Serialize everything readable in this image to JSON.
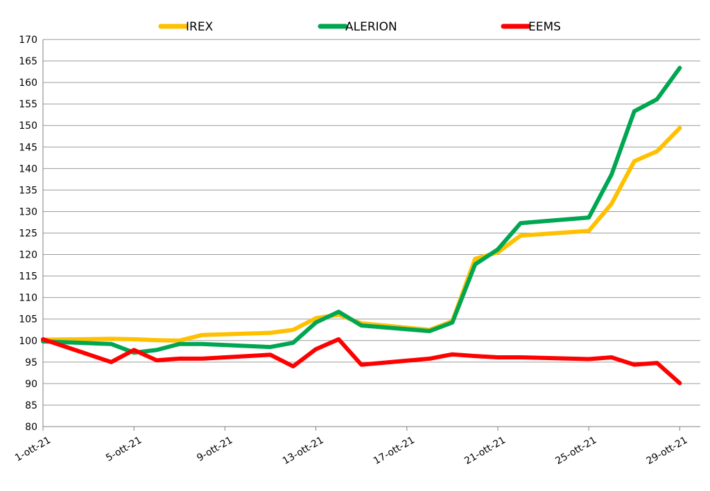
{
  "chart_data": {
    "type": "line",
    "title": "",
    "xlabel": "",
    "ylabel": "",
    "ylim": [
      80,
      170
    ],
    "y_step": 5,
    "y_ticks": [
      "170",
      "165",
      "160",
      "155",
      "150",
      "145",
      "140",
      "135",
      "130",
      "125",
      "120",
      "115",
      "110",
      "105",
      "100",
      "95",
      "90",
      "85",
      "80"
    ],
    "x_range": [
      "2021-10-01",
      "2021-10-30"
    ],
    "x_ticks": [
      {
        "date": "2021-10-01",
        "label": "1-ott-21"
      },
      {
        "date": "2021-10-05",
        "label": "5-ott-21"
      },
      {
        "date": "2021-10-09",
        "label": "9-ott-21"
      },
      {
        "date": "2021-10-13",
        "label": "13-ott-21"
      },
      {
        "date": "2021-10-17",
        "label": "17-ott-21"
      },
      {
        "date": "2021-10-21",
        "label": "21-ott-21"
      },
      {
        "date": "2021-10-25",
        "label": "25-ott-21"
      },
      {
        "date": "2021-10-29",
        "label": "29-ott-21"
      }
    ],
    "grid": true,
    "legend_position": "top-center",
    "series": [
      {
        "name": "IREX",
        "color": "#FFC000",
        "points": [
          [
            "2021-10-01",
            100.2
          ],
          [
            "2021-10-04",
            100.4
          ],
          [
            "2021-10-05",
            100.3
          ],
          [
            "2021-10-06",
            100.1
          ],
          [
            "2021-10-07",
            100.0
          ],
          [
            "2021-10-08",
            101.3
          ],
          [
            "2021-10-11",
            101.8
          ],
          [
            "2021-10-12",
            102.5
          ],
          [
            "2021-10-13",
            105.2
          ],
          [
            "2021-10-14",
            106.0
          ],
          [
            "2021-10-15",
            104.0
          ],
          [
            "2021-10-18",
            102.5
          ],
          [
            "2021-10-19",
            104.5
          ],
          [
            "2021-10-20",
            119.0
          ],
          [
            "2021-10-21",
            120.5
          ],
          [
            "2021-10-22",
            124.4
          ],
          [
            "2021-10-25",
            125.5
          ],
          [
            "2021-10-26",
            131.8
          ],
          [
            "2021-10-27",
            141.7
          ],
          [
            "2021-10-28",
            144.0
          ],
          [
            "2021-10-29",
            149.4
          ]
        ]
      },
      {
        "name": "ALERION",
        "color": "#00A651",
        "points": [
          [
            "2021-10-01",
            99.8
          ],
          [
            "2021-10-04",
            99.2
          ],
          [
            "2021-10-05",
            97.2
          ],
          [
            "2021-10-06",
            97.8
          ],
          [
            "2021-10-07",
            99.2
          ],
          [
            "2021-10-08",
            99.2
          ],
          [
            "2021-10-11",
            98.5
          ],
          [
            "2021-10-12",
            99.5
          ],
          [
            "2021-10-13",
            104.2
          ],
          [
            "2021-10-14",
            106.7
          ],
          [
            "2021-10-15",
            103.5
          ],
          [
            "2021-10-18",
            102.2
          ],
          [
            "2021-10-19",
            104.2
          ],
          [
            "2021-10-20",
            117.7
          ],
          [
            "2021-10-21",
            121.2
          ],
          [
            "2021-10-22",
            127.3
          ],
          [
            "2021-10-25",
            128.6
          ],
          [
            "2021-10-26",
            138.6
          ],
          [
            "2021-10-27",
            153.3
          ],
          [
            "2021-10-28",
            156.1
          ],
          [
            "2021-10-29",
            163.4
          ]
        ]
      },
      {
        "name": "EEMS",
        "color": "#FF0000",
        "points": [
          [
            "2021-10-01",
            100.3
          ],
          [
            "2021-10-04",
            95.0
          ],
          [
            "2021-10-05",
            97.8
          ],
          [
            "2021-10-06",
            95.4
          ],
          [
            "2021-10-07",
            95.8
          ],
          [
            "2021-10-08",
            95.8
          ],
          [
            "2021-10-11",
            96.7
          ],
          [
            "2021-10-12",
            94.0
          ],
          [
            "2021-10-13",
            98.0
          ],
          [
            "2021-10-14",
            100.3
          ],
          [
            "2021-10-15",
            94.4
          ],
          [
            "2021-10-18",
            95.8
          ],
          [
            "2021-10-19",
            96.8
          ],
          [
            "2021-10-20",
            96.4
          ],
          [
            "2021-10-21",
            96.1
          ],
          [
            "2021-10-22",
            96.1
          ],
          [
            "2021-10-25",
            95.7
          ],
          [
            "2021-10-26",
            96.1
          ],
          [
            "2021-10-27",
            94.4
          ],
          [
            "2021-10-28",
            94.8
          ],
          [
            "2021-10-29",
            90.1
          ]
        ]
      }
    ]
  }
}
